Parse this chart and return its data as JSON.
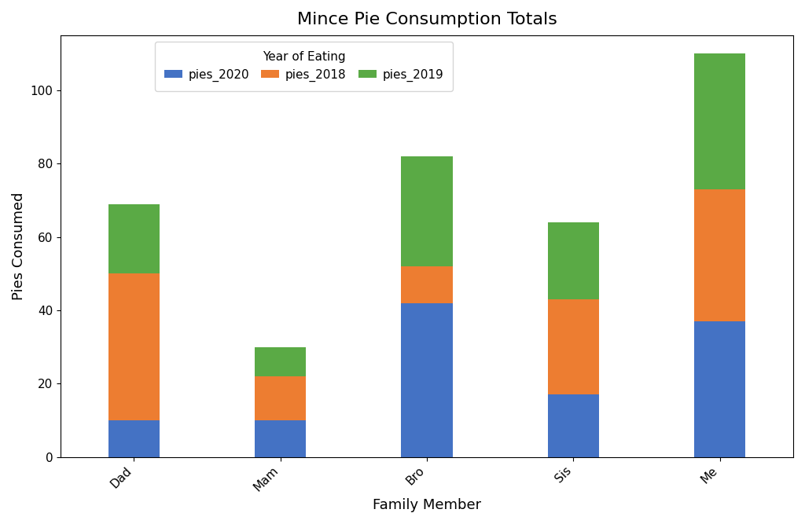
{
  "categories": [
    "Dad",
    "Mam",
    "Bro",
    "Sis",
    "Me"
  ],
  "pies_2020": [
    10,
    10,
    42,
    17,
    37
  ],
  "pies_2018": [
    40,
    12,
    10,
    26,
    36
  ],
  "pies_2019": [
    19,
    8,
    30,
    21,
    37
  ],
  "colors": {
    "pies_2020": "#4472c4",
    "pies_2018": "#ed7d31",
    "pies_2019": "#5aaa45"
  },
  "title": "Mince Pie Consumption Totals",
  "xlabel": "Family Member",
  "ylabel": "Pies Consumed",
  "legend_title": "Year of Eating",
  "legend_ncol": 3,
  "title_fontsize": 16,
  "label_fontsize": 13,
  "tick_fontsize": 11,
  "bar_width": 0.35,
  "ylim_max": 115,
  "figsize": [
    10.24,
    6.67
  ],
  "dpi": 100
}
